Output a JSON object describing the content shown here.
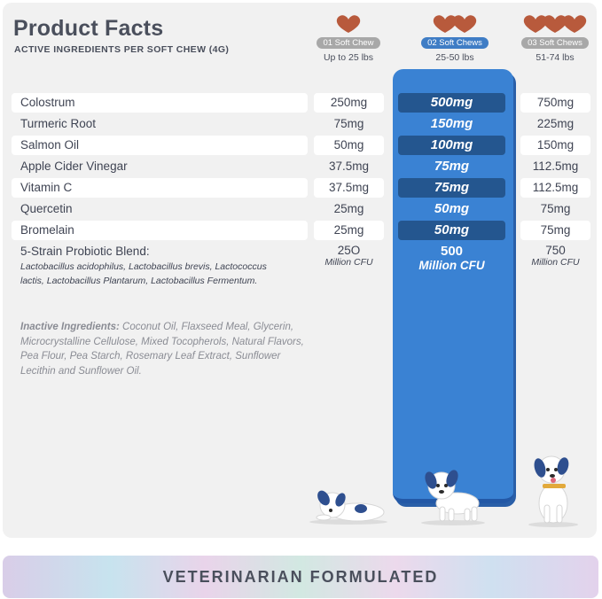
{
  "header": {
    "title": "Product Facts",
    "subtitle": "ACTIVE INGREDIENTS PER SOFT CHEW (4G)"
  },
  "columns": [
    {
      "pill": "01 Soft Chew",
      "weight": "Up to 25 lbs",
      "chews": 1
    },
    {
      "pill": "02 Soft Chews",
      "weight": "25-50 lbs",
      "chews": 2
    },
    {
      "pill": "03 Soft Chews",
      "weight": "51-74 lbs",
      "chews": 3
    }
  ],
  "ingredients": [
    {
      "name": "Colostrum",
      "v1": "250mg",
      "v2": "500mg",
      "v3": "750mg"
    },
    {
      "name": "Turmeric Root",
      "v1": "75mg",
      "v2": "150mg",
      "v3": "225mg"
    },
    {
      "name": "Salmon Oil",
      "v1": "50mg",
      "v2": "100mg",
      "v3": "150mg"
    },
    {
      "name": "Apple Cider Vinegar",
      "v1": "37.5mg",
      "v2": "75mg",
      "v3": "112.5mg"
    },
    {
      "name": "Vitamin C",
      "v1": "37.5mg",
      "v2": "75mg",
      "v3": "112.5mg"
    },
    {
      "name": "Quercetin",
      "v1": "25mg",
      "v2": "50mg",
      "v3": "75mg"
    },
    {
      "name": "Bromelain",
      "v1": "25mg",
      "v2": "50mg",
      "v3": "75mg"
    }
  ],
  "probiotic": {
    "name": "5-Strain Probiotic Blend:",
    "strains": "Lactobacillus acidophilus, Lactobacillus brevis, Lactococcus lactis, Lactobacillus Plantarum, Lactobacillus Fermentum.",
    "v1": "25O",
    "v2": "500",
    "v3": "750",
    "unit": "Million CFU"
  },
  "inactive": {
    "label": "Inactive Ingredients:",
    "text": "Coconut Oil, Flaxseed Meal, Glycerin, Microcrystalline Cellulose, Mixed Tocopherols, Natural Flavors, Pea Flour, Pea Starch, Rosemary Leaf Extract, Sunflower Lecithin and Sunflower Oil."
  },
  "banner": {
    "text": "VETERINARIAN FORMULATED"
  },
  "colors": {
    "panel": "#f1f1f1",
    "highlight": "#3a82d3",
    "highlight_box": "#24568f",
    "chew": "#b85a3c",
    "pill_active": "#3f7dc5",
    "pill_inactive": "#a8a8a8"
  },
  "icons": [
    "soft-chew-heart-icon",
    "puppy-lying-illustration",
    "puppy-standing-illustration",
    "puppy-sitting-illustration"
  ]
}
